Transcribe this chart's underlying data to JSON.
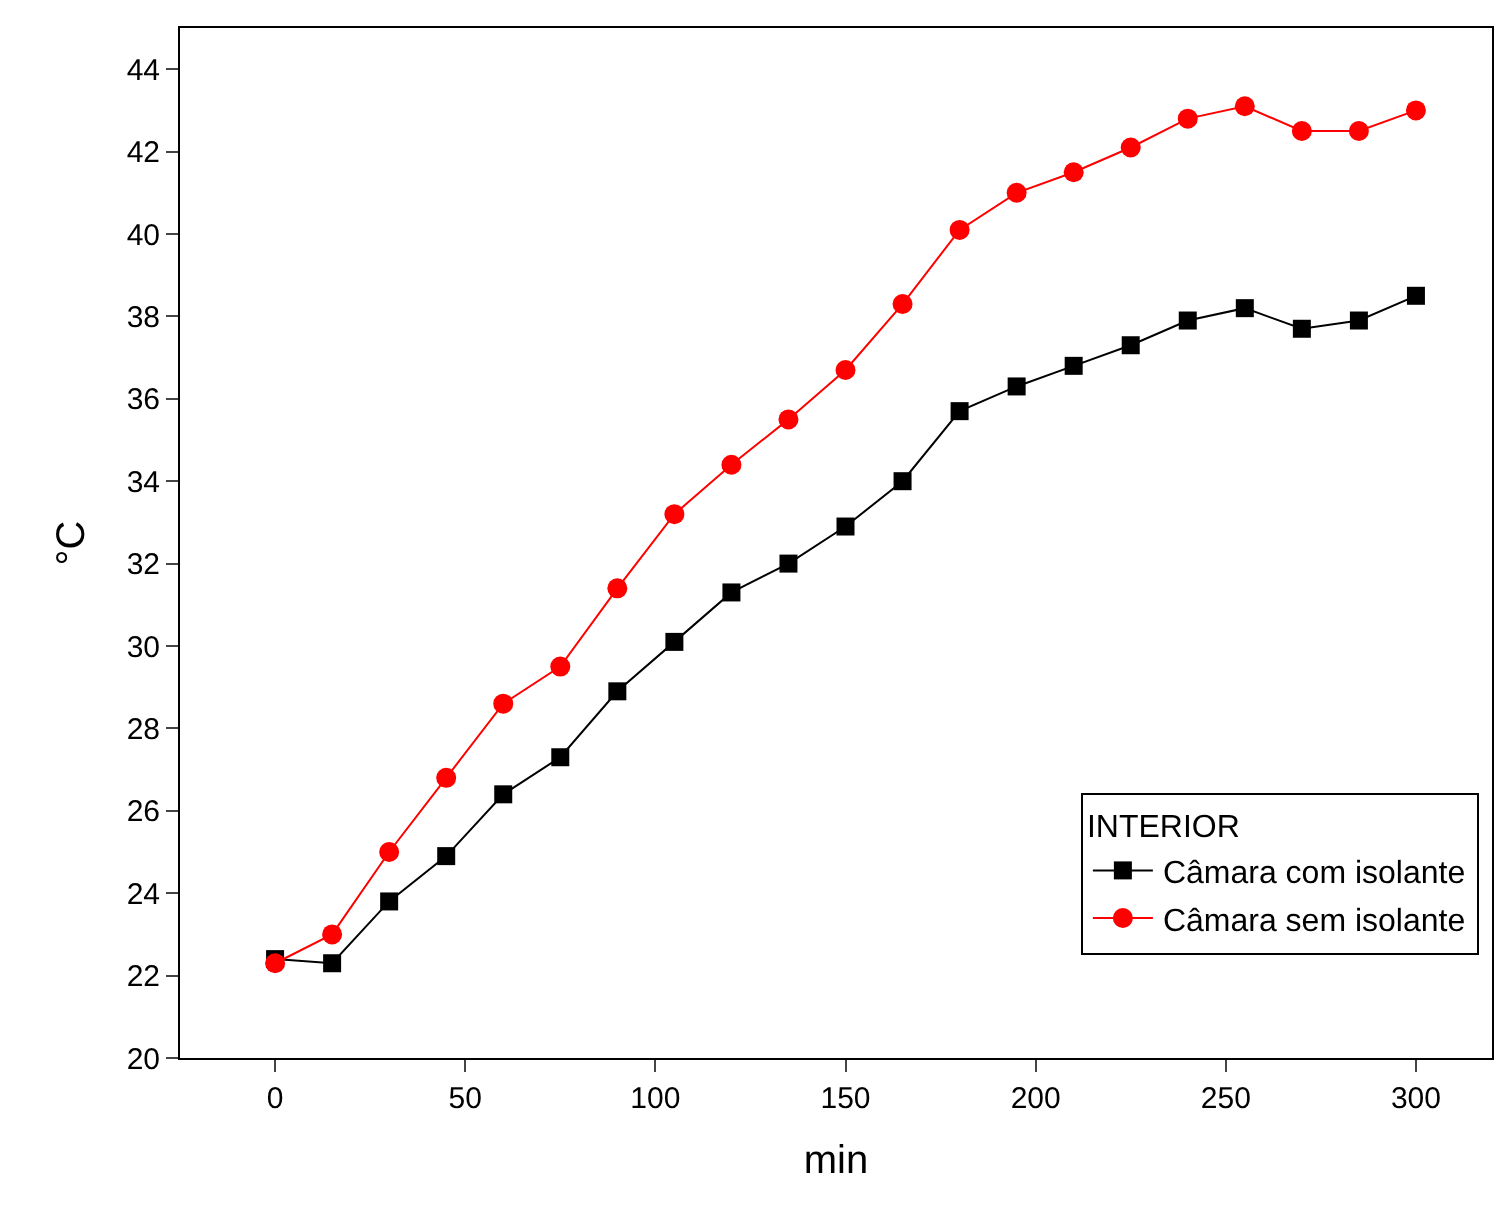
{
  "chart_data": {
    "type": "line",
    "xlabel": "min",
    "ylabel": "°C",
    "legend_title": "INTERIOR",
    "legend": "bottom right",
    "x": [
      0,
      15,
      30,
      45,
      60,
      75,
      90,
      105,
      120,
      135,
      150,
      165,
      180,
      195,
      210,
      225,
      240,
      255,
      270,
      285,
      300
    ],
    "xlim": [
      -25,
      320
    ],
    "xticks": [
      0,
      50,
      100,
      150,
      200,
      250,
      300
    ],
    "ylim": [
      20,
      45
    ],
    "yticks": [
      20,
      22,
      24,
      26,
      28,
      30,
      32,
      34,
      36,
      38,
      40,
      42,
      44
    ],
    "series": [
      {
        "name": "Câmara com isolante",
        "color": "#000000",
        "marker": "square",
        "values": [
          22.4,
          22.3,
          23.8,
          24.9,
          26.4,
          27.3,
          28.9,
          30.1,
          31.3,
          32.0,
          32.9,
          34.0,
          35.7,
          36.3,
          36.8,
          37.3,
          37.9,
          38.2,
          37.7,
          37.9,
          38.5
        ]
      },
      {
        "name": "Câmara sem isolante",
        "color": "#ff0000",
        "marker": "circle",
        "values": [
          22.3,
          23.0,
          25.0,
          26.8,
          28.6,
          29.5,
          31.4,
          33.2,
          34.4,
          35.5,
          36.7,
          38.3,
          40.1,
          41.0,
          41.5,
          42.1,
          42.8,
          43.1,
          42.5,
          42.5,
          43.0
        ]
      }
    ]
  }
}
